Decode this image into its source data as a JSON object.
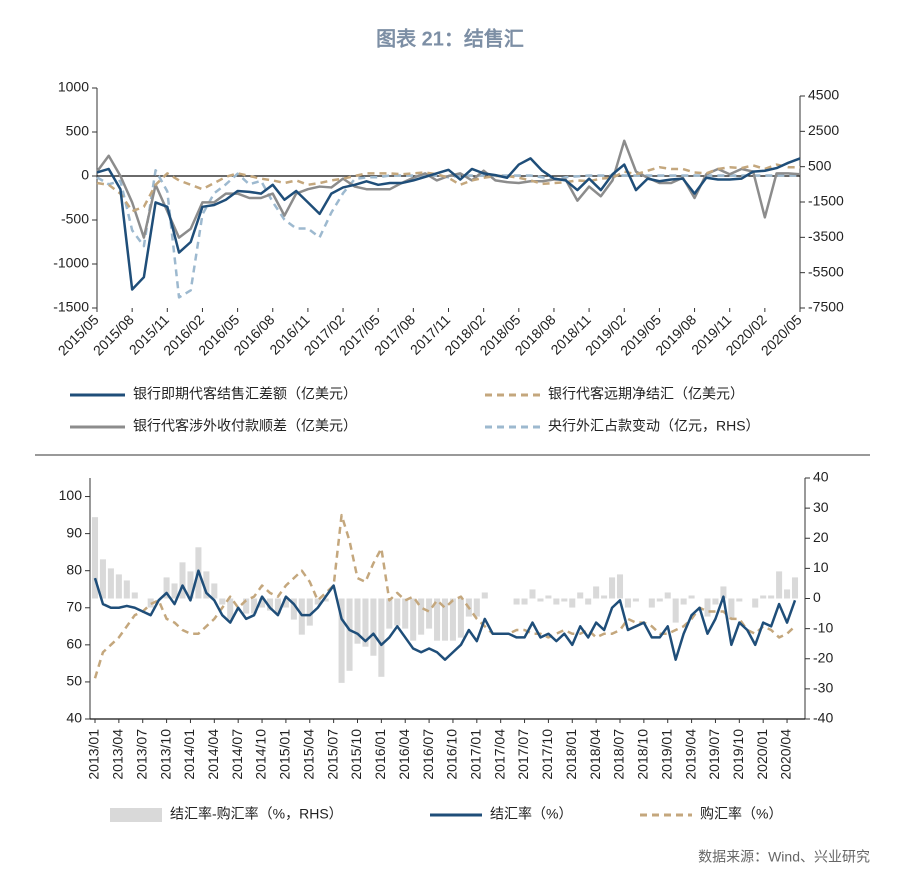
{
  "title": "图表 21：结售汇",
  "source": "数据来源：Wind、兴业研究",
  "chart_data": [
    {
      "type": "line",
      "categories": [
        "2015/05",
        null,
        null,
        "2015/08",
        null,
        null,
        "2015/11",
        null,
        null,
        "2016/02",
        null,
        null,
        "2016/05",
        null,
        null,
        "2016/08",
        null,
        null,
        "2016/11",
        null,
        null,
        "2017/02",
        null,
        null,
        "2017/05",
        null,
        null,
        "2017/08",
        null,
        null,
        "2017/11",
        null,
        null,
        "2018/02",
        null,
        null,
        "2018/05",
        null,
        null,
        "2018/08",
        null,
        null,
        "2018/11",
        null,
        null,
        "2019/02",
        null,
        null,
        "2019/05",
        null,
        null,
        "2019/08",
        null,
        null,
        "2019/11",
        null,
        null,
        "2020/02",
        null,
        null,
        "2020/05"
      ],
      "ylim": [
        -1500,
        1000
      ],
      "yticks": [
        -1500,
        -1000,
        -500,
        0,
        500,
        1000
      ],
      "y2lim": [
        -7500,
        4500
      ],
      "y2ticks": [
        -7500,
        -5500,
        -3500,
        -1500,
        500,
        2500,
        4500
      ],
      "series": [
        {
          "name": "银行即期代客结售汇差额（亿美元）",
          "color": "#1f4e79",
          "type": "line",
          "dash": false,
          "values": [
            40,
            80,
            -150,
            -1290,
            -1150,
            -300,
            -350,
            -870,
            -750,
            -350,
            -330,
            -270,
            -170,
            -180,
            -200,
            -100,
            -270,
            -170,
            -300,
            -430,
            -200,
            -130,
            -100,
            -60,
            -100,
            -80,
            -80,
            -50,
            -10,
            30,
            70,
            -40,
            80,
            30,
            10,
            -20,
            130,
            200,
            60,
            -30,
            -50,
            -160,
            -30,
            -160,
            20,
            130,
            -160,
            -30,
            -60,
            -40,
            -30,
            -200,
            -20,
            -40,
            -40,
            -30,
            50,
            60,
            90,
            150,
            200
          ]
        },
        {
          "name": "银行代客远期净结汇（亿美元）",
          "color": "#c4a77d",
          "type": "line",
          "dash": true,
          "values": [
            -80,
            -100,
            -200,
            -400,
            -350,
            -100,
            30,
            -50,
            -100,
            -150,
            -80,
            -10,
            30,
            0,
            -30,
            -50,
            -80,
            -50,
            -100,
            -80,
            -50,
            -30,
            0,
            30,
            30,
            30,
            20,
            30,
            40,
            20,
            -20,
            -100,
            -50,
            -20,
            0,
            0,
            -20,
            -50,
            -90,
            -80,
            -70,
            -50,
            -60,
            -30,
            -20,
            50,
            20,
            60,
            100,
            80,
            80,
            40,
            30,
            80,
            100,
            90,
            120,
            80,
            130,
            100,
            100
          ]
        },
        {
          "name": "银行代客涉外收付款顺差（亿美元）",
          "color": "#8c8c8c",
          "type": "line",
          "dash": false,
          "values": [
            50,
            230,
            0,
            -300,
            -700,
            -100,
            -400,
            -700,
            -600,
            -300,
            -300,
            -200,
            -200,
            -250,
            -250,
            -200,
            -450,
            -200,
            -150,
            -120,
            -130,
            -30,
            -120,
            -150,
            -150,
            -150,
            -80,
            -20,
            30,
            -50,
            0,
            30,
            -50,
            60,
            -50,
            -70,
            -80,
            -60,
            -60,
            -40,
            -40,
            -280,
            -120,
            -230,
            -50,
            400,
            50,
            -20,
            -80,
            -80,
            -20,
            -250,
            20,
            80,
            20,
            80,
            50,
            -470,
            30,
            30,
            20
          ]
        },
        {
          "name": "央行外汇占款变动（亿元，RHS）",
          "color": "#9db9cf",
          "type": "line",
          "dash": true,
          "axis": "y2",
          "values": [
            -100,
            -500,
            -300,
            -3100,
            -4000,
            300,
            -900,
            -6900,
            -6500,
            -2200,
            -1000,
            -500,
            100,
            -500,
            -300,
            -1500,
            -2500,
            -3000,
            -3000,
            -3500,
            -2100,
            -1000,
            -200,
            -100,
            -100,
            0,
            0,
            0,
            0,
            0,
            -100,
            0,
            0,
            0,
            0,
            0,
            0,
            0,
            -100,
            -200,
            -100,
            -50,
            0,
            0,
            0,
            0,
            0,
            0,
            0,
            0,
            0,
            0,
            0,
            0,
            0,
            0,
            0,
            0,
            0,
            0,
            0
          ]
        }
      ]
    },
    {
      "type": "combo",
      "categories": [
        "2013/01",
        null,
        null,
        "2013/04",
        null,
        null,
        "2013/07",
        null,
        null,
        "2013/10",
        null,
        null,
        "2014/01",
        null,
        null,
        "2014/04",
        null,
        null,
        "2014/07",
        null,
        null,
        "2014/10",
        null,
        null,
        "2015/01",
        null,
        null,
        "2015/04",
        null,
        null,
        "2015/07",
        null,
        null,
        "2015/10",
        null,
        null,
        "2016/01",
        null,
        null,
        "2016/04",
        null,
        null,
        "2016/07",
        null,
        null,
        "2016/10",
        null,
        null,
        "2017/01",
        null,
        null,
        "2017/04",
        null,
        null,
        "2017/07",
        null,
        null,
        "2017/10",
        null,
        null,
        "2018/01",
        null,
        null,
        "2018/04",
        null,
        null,
        "2018/07",
        null,
        null,
        "2018/10",
        null,
        null,
        "2019/01",
        null,
        null,
        "2019/04",
        null,
        null,
        "2019/07",
        null,
        null,
        "2019/10",
        null,
        null,
        "2020/01",
        null,
        null,
        "2020/04",
        null
      ],
      "ylim": [
        40,
        105
      ],
      "yticks": [
        40,
        50,
        60,
        70,
        80,
        90,
        100
      ],
      "y2lim": [
        -40,
        40
      ],
      "y2ticks": [
        -40,
        -30,
        -20,
        -10,
        0,
        10,
        20,
        30,
        40
      ],
      "series": [
        {
          "name": "结汇率-购汇率（%，RHS）",
          "color": "#d9d9d9",
          "type": "bar",
          "axis": "y2",
          "values": [
            27,
            13,
            10,
            8,
            6,
            2,
            0,
            -3,
            0,
            7,
            5,
            12,
            9,
            17,
            9,
            5,
            -2,
            -7,
            0,
            -5,
            -5,
            -3,
            -4,
            -5,
            -3,
            -7,
            -12,
            -9,
            -2,
            -1,
            0,
            -28,
            -24,
            -15,
            -16,
            -19,
            -26,
            -10,
            -9,
            -10,
            -14,
            -12,
            -10,
            -14,
            -14,
            -14,
            -13,
            -6,
            -6,
            2,
            0,
            0,
            0,
            -2,
            -2,
            3,
            -1,
            1,
            -2,
            -1,
            -3,
            2,
            -2,
            4,
            1,
            7,
            8,
            -3,
            -1,
            0,
            -3,
            -1,
            2,
            -8,
            -2,
            1,
            0,
            -6,
            -2,
            4,
            -7,
            -1,
            0,
            -3,
            1,
            1,
            9,
            3,
            7
          ]
        },
        {
          "name": "结汇率（%）",
          "color": "#1f4e79",
          "type": "line",
          "dash": false,
          "values": [
            78,
            71,
            70,
            70,
            70.5,
            70,
            69,
            68,
            72,
            74,
            71,
            76,
            72,
            80,
            74,
            72,
            68,
            66,
            70,
            67,
            68,
            73,
            70,
            68,
            73,
            71,
            68,
            68,
            70,
            73,
            76,
            67,
            64,
            63,
            61,
            63,
            60,
            62,
            65,
            62,
            59,
            58,
            59,
            58,
            56,
            58,
            60,
            64,
            61,
            67,
            63,
            63,
            63,
            62,
            62,
            66,
            62,
            63,
            61,
            63,
            60,
            65,
            62,
            66,
            64,
            70,
            72,
            64,
            65,
            66,
            62,
            62,
            65,
            56,
            63,
            68,
            70,
            63,
            67,
            73,
            60,
            66,
            64,
            60,
            66,
            65,
            71,
            66,
            72
          ]
        },
        {
          "name": "购汇率（%）",
          "color": "#c4a77d",
          "type": "line",
          "dash": true,
          "values": [
            51,
            58,
            60,
            62,
            65,
            68,
            69,
            71,
            72,
            67,
            66,
            64,
            63,
            63,
            65,
            67,
            70,
            73,
            70,
            72,
            73,
            76,
            74,
            73,
            76,
            78,
            80,
            77,
            72,
            74,
            76,
            95,
            88,
            78,
            77,
            82,
            86,
            72,
            74,
            72,
            73,
            70,
            69,
            72,
            70,
            72,
            73,
            70,
            67,
            65,
            63,
            63,
            63,
            64,
            64,
            63,
            63,
            62,
            63,
            64,
            63,
            63,
            64,
            62,
            63,
            63,
            64,
            67,
            66,
            66,
            65,
            63,
            63,
            64,
            65,
            67,
            70,
            69,
            69,
            69,
            67,
            67,
            64,
            63,
            65,
            64,
            62,
            63,
            65
          ]
        }
      ]
    }
  ]
}
